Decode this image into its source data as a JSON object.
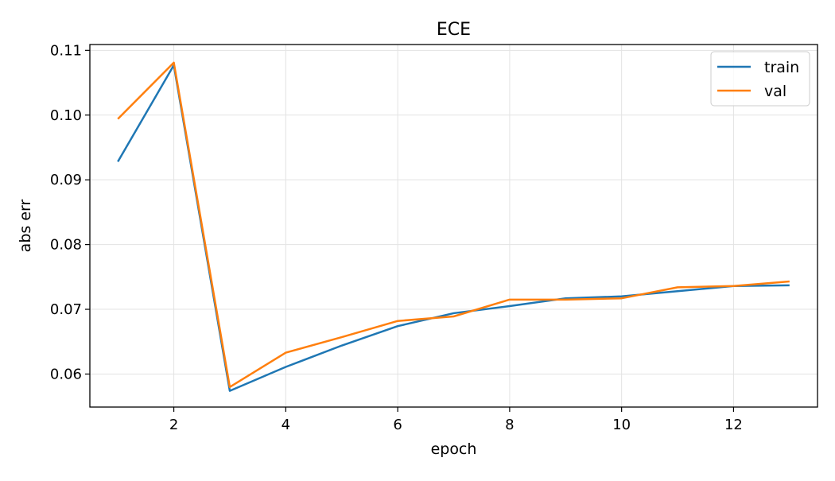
{
  "chart_data": {
    "type": "line",
    "title": "ECE",
    "xlabel": "epoch",
    "ylabel": "abs err",
    "x": [
      1,
      2,
      3,
      4,
      5,
      6,
      7,
      8,
      9,
      10,
      11,
      12,
      13
    ],
    "xlim": [
      0.5,
      13.5
    ],
    "ylim": [
      0.0549,
      0.1109
    ],
    "xticks": [
      2,
      4,
      6,
      8,
      10,
      12
    ],
    "yticks": [
      0.06,
      0.07,
      0.08,
      0.09,
      0.1,
      0.11
    ],
    "xtick_labels": [
      "2",
      "4",
      "6",
      "8",
      "10",
      "12"
    ],
    "ytick_labels": [
      "0.06",
      "0.07",
      "0.08",
      "0.09",
      "0.10",
      "0.11"
    ],
    "grid": true,
    "legend_position": "top-right",
    "series": [
      {
        "name": "train",
        "color": "#1f77b4",
        "values": [
          0.0928,
          0.1077,
          0.0574,
          0.0611,
          0.0644,
          0.0674,
          0.0694,
          0.0705,
          0.0717,
          0.072,
          0.0728,
          0.0736,
          0.0737
        ]
      },
      {
        "name": "val",
        "color": "#ff7f0e",
        "values": [
          0.0994,
          0.1081,
          0.058,
          0.0633,
          0.0657,
          0.0682,
          0.0689,
          0.0715,
          0.0715,
          0.0717,
          0.0734,
          0.0736,
          0.0743
        ]
      }
    ]
  }
}
